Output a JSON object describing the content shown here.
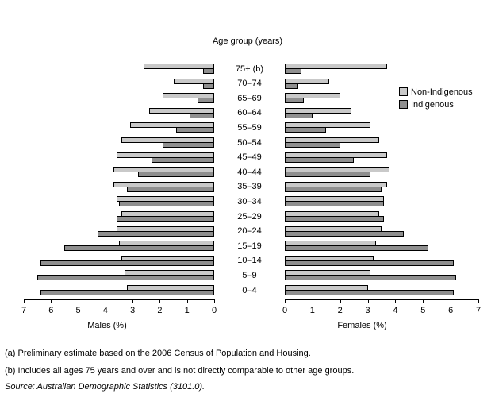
{
  "title": "Age group (years)",
  "legend": {
    "items": [
      {
        "label": "Non-Indigenous",
        "color": "#c9c9c9"
      },
      {
        "label": "Indigenous",
        "color": "#8f8f8f"
      }
    ]
  },
  "footnotes": {
    "a": "(a) Preliminary estimate based on the 2006 Census of Population and Housing.",
    "b": "(b) Includes all ages 75 years and over and is not directly comparable to other age groups.",
    "source": "Source: Australian Demographic Statistics (3101.0)."
  },
  "colors": {
    "non_indigenous": "#c9c9c9",
    "indigenous": "#8f8f8f",
    "outline": "#000000",
    "background": "#ffffff"
  },
  "chart_data": {
    "type": "bar",
    "subtype": "population_pyramid",
    "title": "Age group (years)",
    "grid": false,
    "legend_position": "right",
    "legend_entries": [
      "Non-Indigenous",
      "Indigenous"
    ],
    "categories_order": "top_to_bottom",
    "categories": [
      "75+ (b)",
      "70–74",
      "65–69",
      "60–64",
      "55–59",
      "50–54",
      "45–49",
      "40–44",
      "35–39",
      "30–34",
      "25–29",
      "20–24",
      "15–19",
      "10–14",
      "5–9",
      "0–4"
    ],
    "left_axis": {
      "label": "Males (%)",
      "range": [
        0,
        7
      ],
      "direction": "right_to_left",
      "ticks": [
        "7",
        "6",
        "5",
        "4",
        "3",
        "2",
        "1",
        "0"
      ]
    },
    "right_axis": {
      "label": "Females (%)",
      "range": [
        0,
        7
      ],
      "direction": "left_to_right",
      "ticks": [
        "0",
        "1",
        "2",
        "3",
        "4",
        "5",
        "6",
        "7"
      ]
    },
    "series": [
      {
        "name": "Males Non-Indigenous",
        "side": "left",
        "color_key": "non_indigenous",
        "values": [
          2.6,
          1.5,
          1.9,
          2.4,
          3.1,
          3.4,
          3.6,
          3.7,
          3.7,
          3.6,
          3.4,
          3.6,
          3.5,
          3.4,
          3.3,
          3.2
        ]
      },
      {
        "name": "Males Indigenous",
        "side": "left",
        "color_key": "indigenous",
        "values": [
          0.4,
          0.4,
          0.6,
          0.9,
          1.4,
          1.9,
          2.3,
          2.8,
          3.2,
          3.5,
          3.6,
          4.3,
          5.5,
          6.4,
          6.5,
          6.4
        ]
      },
      {
        "name": "Females Non-Indigenous",
        "side": "right",
        "color_key": "non_indigenous",
        "values": [
          3.7,
          1.6,
          2.0,
          2.4,
          3.1,
          3.4,
          3.7,
          3.8,
          3.7,
          3.6,
          3.4,
          3.5,
          3.3,
          3.2,
          3.1,
          3.0
        ]
      },
      {
        "name": "Females Indigenous",
        "side": "right",
        "color_key": "indigenous",
        "values": [
          0.6,
          0.5,
          0.7,
          1.0,
          1.5,
          2.0,
          2.5,
          3.1,
          3.5,
          3.6,
          3.6,
          4.3,
          5.2,
          6.1,
          6.2,
          6.1
        ]
      }
    ]
  }
}
